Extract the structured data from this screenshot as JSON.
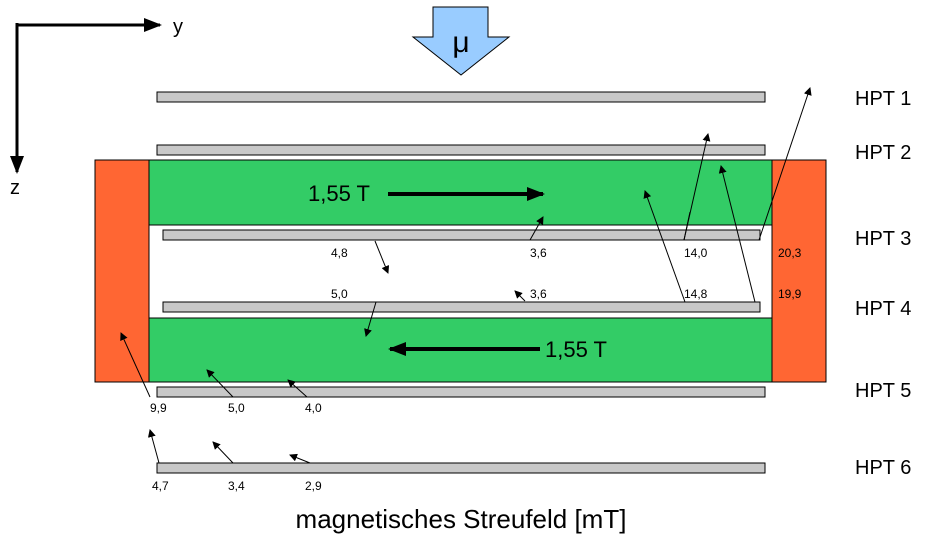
{
  "axes": {
    "horizontal": "y",
    "vertical": "z"
  },
  "beam": {
    "symbol": "μ",
    "color": "#99ccff"
  },
  "colors": {
    "magnet": "#33cc66",
    "yoke": "#ff6633",
    "chamber": "#c8c8c8"
  },
  "chambers": [
    "HPT 1",
    "HPT 2",
    "HPT 3",
    "HPT 4",
    "HPT 5",
    "HPT 6"
  ],
  "magnets": {
    "top_field": "1,55 T",
    "bottom_field": "1,55 T"
  },
  "field_values": {
    "hpt3": [
      "4,8",
      "3,6",
      "14,0",
      "20,3"
    ],
    "hpt4": [
      "5,0",
      "3,6",
      "14,8",
      "19,9"
    ],
    "hpt5": [
      "9,9",
      "5,0",
      "4,0"
    ],
    "hpt6": [
      "4,7",
      "3,4",
      "2,9"
    ]
  },
  "caption": "magnetisches Streufeld [mT]"
}
